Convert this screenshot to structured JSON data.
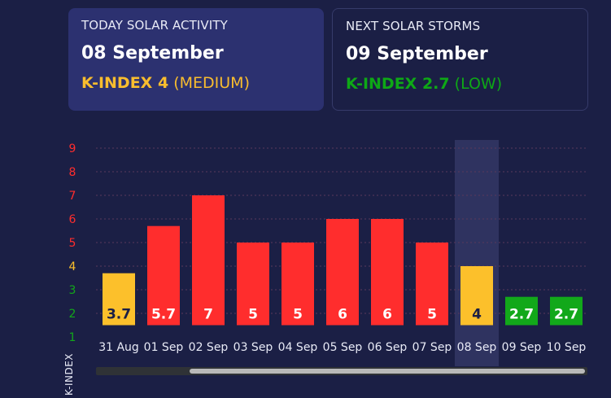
{
  "today_card": {
    "label": "TODAY SOLAR ACTIVITY",
    "date": "08 September",
    "kindex_label": "K-INDEX 4",
    "level": "(MEDIUM)",
    "color": "#f9bd2e"
  },
  "next_card": {
    "label": "NEXT SOLAR STORMS",
    "date": "09 September",
    "kindex_label": "K-INDEX 2.7",
    "level": "(LOW)",
    "color": "#0ea816"
  },
  "colors": {
    "high": "#ff2d2d",
    "medium": "#fcc02b",
    "low": "#12a81a",
    "background": "#1b1f45",
    "highlight": "#2f3360"
  },
  "chart_data": {
    "type": "bar",
    "ylabel": "K-INDEX",
    "ylim": [
      1,
      9
    ],
    "yticks": [
      "1",
      "2",
      "3",
      "4",
      "5",
      "6",
      "7",
      "8",
      "9"
    ],
    "ytick_colors": [
      "#12a81a",
      "#12a81a",
      "#12a81a",
      "#fcc02b",
      "#ff2d2d",
      "#ff2d2d",
      "#ff2d2d",
      "#ff2d2d",
      "#ff2d2d"
    ],
    "categories": [
      "31 Aug",
      "01 Sep",
      "02 Sep",
      "03 Sep",
      "04 Sep",
      "05 Sep",
      "06 Sep",
      "07 Sep",
      "08 Sep",
      "09 Sep",
      "10 Sep"
    ],
    "values": [
      3.7,
      5.7,
      7,
      5,
      5,
      6,
      6,
      5,
      4,
      2.7,
      2.7
    ],
    "value_labels": [
      "3.7",
      "5.7",
      "7",
      "5",
      "5",
      "6",
      "6",
      "5",
      "4",
      "2.7",
      "2.7"
    ],
    "bar_colors": [
      "medium",
      "high",
      "high",
      "high",
      "high",
      "high",
      "high",
      "high",
      "medium",
      "low",
      "low"
    ],
    "highlighted_category": "08 Sep",
    "grid": true,
    "legend": "none"
  }
}
